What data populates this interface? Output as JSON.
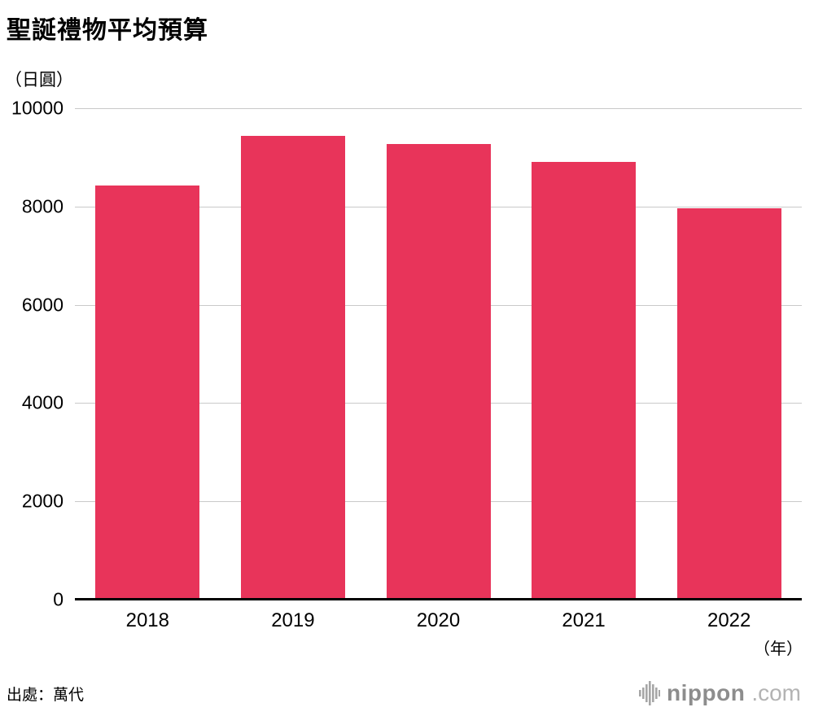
{
  "chart": {
    "title": "聖誕禮物平均預算",
    "y_unit_label": "（日圓）",
    "x_unit_label": "（年）"
  },
  "chart_data": {
    "type": "bar",
    "categories": [
      "2018",
      "2019",
      "2020",
      "2021",
      "2022"
    ],
    "values": [
      8420,
      9430,
      9270,
      8910,
      7970
    ],
    "title": "聖誕禮物平均預算",
    "xlabel": "（年）",
    "ylabel": "（日圓）",
    "ylim": [
      0,
      10000
    ],
    "yticks": [
      0,
      2000,
      4000,
      6000,
      8000,
      10000
    ],
    "grid": true,
    "legend": "none",
    "bar_color": "#e8345a",
    "gridline_color": "#c9c9c9",
    "axis_color": "#000000"
  },
  "footer": {
    "source": "出處：萬代",
    "logo_text": "nippon",
    "logo_suffix": ".com"
  }
}
